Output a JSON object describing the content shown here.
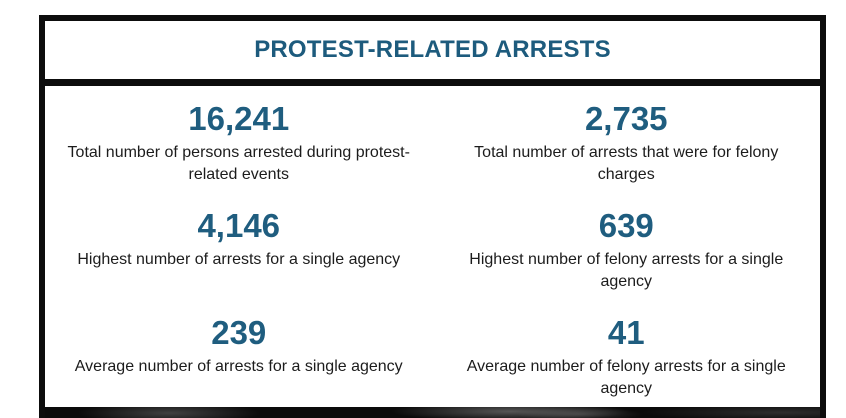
{
  "card": {
    "title": "PROTEST-RELATED ARRESTS",
    "stats": [
      {
        "value": "16,241",
        "label": "Total number of persons arrested during protest-related events"
      },
      {
        "value": "2,735",
        "label": "Total number of arrests that were for felony charges"
      },
      {
        "value": "4,146",
        "label": "Highest number of arrests for a single agency"
      },
      {
        "value": "639",
        "label": "Highest number of felony arrests for a single agency"
      },
      {
        "value": "239",
        "label": "Average number of arrests for a single agency"
      },
      {
        "value": "41",
        "label": "Average number of felony arrests for a single agency"
      }
    ],
    "colors": {
      "accent": "#1d5b7d",
      "border": "#0d0d0d",
      "label_text": "#1c1c1c",
      "card_background": "#ffffff",
      "photo_strip": "#0b0b0b"
    }
  }
}
